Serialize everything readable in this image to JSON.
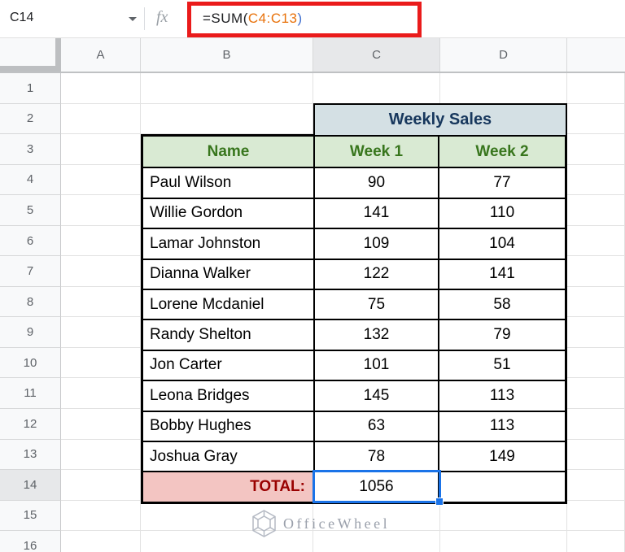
{
  "name_box": {
    "value": "C14"
  },
  "formula_bar": {
    "fx_label": "fx",
    "formula_prefix": "=SUM(",
    "formula_range": "C4:C13",
    "formula_suffix": ")"
  },
  "column_headers": [
    "A",
    "B",
    "C",
    "D"
  ],
  "row_numbers": [
    "1",
    "2",
    "3",
    "4",
    "5",
    "6",
    "7",
    "8",
    "9",
    "10",
    "11",
    "12",
    "13",
    "14",
    "15",
    "16"
  ],
  "selected": {
    "cell_ref": "C14",
    "column": "C",
    "row": "14"
  },
  "sheet_table": {
    "title": "Weekly Sales",
    "headers": [
      "Name",
      "Week 1",
      "Week 2"
    ],
    "rows": [
      {
        "name": "Paul Wilson",
        "week1": "90",
        "week2": "77"
      },
      {
        "name": "Willie Gordon",
        "week1": "141",
        "week2": "110"
      },
      {
        "name": "Lamar Johnston",
        "week1": "109",
        "week2": "104"
      },
      {
        "name": "Dianna Walker",
        "week1": "122",
        "week2": "141"
      },
      {
        "name": "Lorene Mcdaniel",
        "week1": "75",
        "week2": "58"
      },
      {
        "name": "Randy Shelton",
        "week1": "132",
        "week2": "79"
      },
      {
        "name": "Jon Carter",
        "week1": "101",
        "week2": "51"
      },
      {
        "name": "Leona Bridges",
        "week1": "145",
        "week2": "113"
      },
      {
        "name": "Bobby Hughes",
        "week1": "63",
        "week2": "113"
      },
      {
        "name": "Joshua Gray",
        "week1": "78",
        "week2": "149"
      }
    ],
    "total_label": "TOTAL:",
    "total_value": "1056",
    "total_empty": ""
  },
  "watermark": {
    "text": "OfficeWheel"
  },
  "colors": {
    "annotation_red": "#ea1b1b",
    "selection_blue": "#1a73e8",
    "formula_range_orange": "#e8710a",
    "weekly_sales_bg": "#d4e0e4",
    "weekly_sales_text": "#17375d",
    "header_green_bg": "#d9ead3",
    "header_green_text": "#38761d",
    "total_pink_bg": "#f3c5c2",
    "total_red_text": "#990000"
  }
}
